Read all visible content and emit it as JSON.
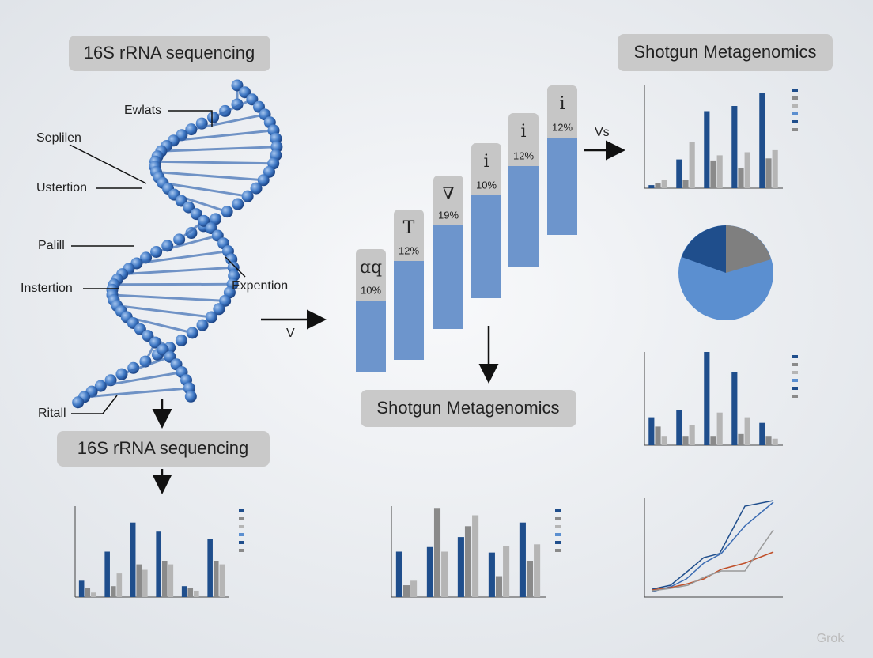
{
  "headers": {
    "left_top": "16S rRNA sequencing",
    "right_top": "Shotgun Metagenomics",
    "center": "Shotgun Metagenomics",
    "left_bottom": "16S rRNA sequencing"
  },
  "dna_labels": [
    "Ewlats",
    "Seplilen",
    "Ustertion",
    "Palill",
    "Instertion",
    "Expention",
    "Ritall"
  ],
  "arrow_labels": [
    "V",
    "Vs"
  ],
  "steps": [
    {
      "symbol": "ɑq",
      "label": "10%"
    },
    {
      "symbol": "T",
      "label": "12%"
    },
    {
      "symbol": "∇",
      "label": "19%"
    },
    {
      "symbol": "i",
      "label": "10%"
    },
    {
      "symbol": "i",
      "label": "12%"
    },
    {
      "symbol": "i",
      "label": "12%"
    }
  ],
  "watermark": "Grok"
}
